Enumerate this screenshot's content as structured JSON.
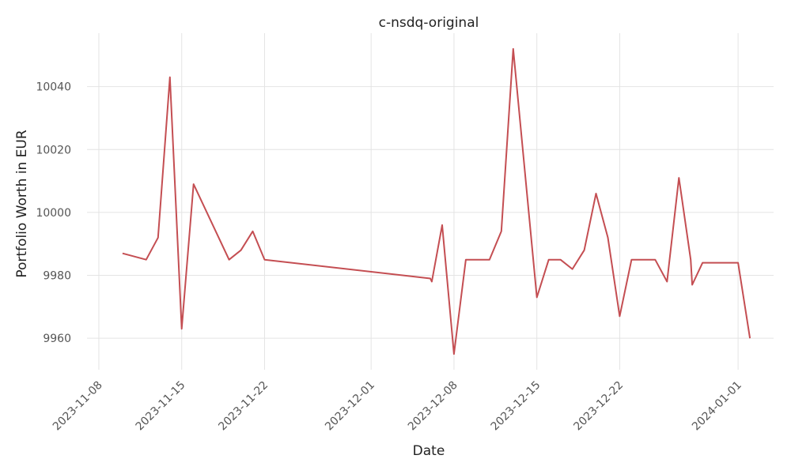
{
  "chart_data": {
    "type": "line",
    "title": "c-nsdq-original",
    "xlabel": "Date",
    "ylabel": "Portfolio Worth in EUR",
    "xlim": [
      "2023-11-07",
      "2024-01-04"
    ],
    "ylim": [
      9950,
      10057
    ],
    "grid": true,
    "x_ticks": [
      "2023-11-08",
      "2023-11-15",
      "2023-11-22",
      "2023-12-01",
      "2023-12-08",
      "2023-12-15",
      "2023-12-22",
      "2024-01-01"
    ],
    "y_ticks": [
      9960,
      9980,
      10000,
      10020,
      10040
    ],
    "color": "#c44e52",
    "series": [
      {
        "x": [
          "2023-11-10",
          "2023-11-12",
          "2023-11-13",
          "2023-11-14",
          "2023-11-15",
          "2023-11-16",
          "2023-11-19",
          "2023-11-20",
          "2023-11-21",
          "2023-11-22",
          "2023-12-06",
          "2023-12-06T03:00",
          "2023-12-07",
          "2023-12-08",
          "2023-12-09",
          "2023-12-10",
          "2023-12-11",
          "2023-12-12",
          "2023-12-13",
          "2023-12-15",
          "2023-12-16",
          "2023-12-17",
          "2023-12-18",
          "2023-12-19",
          "2023-12-20",
          "2023-12-21",
          "2023-12-22",
          "2023-12-23",
          "2023-12-24",
          "2023-12-25",
          "2023-12-26",
          "2023-12-27",
          "2023-12-28",
          "2023-12-28T03:00",
          "2023-12-29",
          "2023-12-30",
          "2023-12-31",
          "2024-01-01",
          "2024-01-02"
        ],
        "values": [
          9987,
          9985,
          9992,
          10043,
          9963,
          10009,
          9985,
          9988,
          9994,
          9985,
          9979,
          9978,
          9996,
          9955,
          9985,
          9985,
          9985,
          9994,
          10052,
          9973,
          9985,
          9985,
          9982,
          9988,
          10006,
          9992,
          9967,
          9985,
          9985,
          9985,
          9978,
          10011,
          9985,
          9977,
          9984,
          9984,
          9984,
          9984,
          9960
        ]
      }
    ]
  }
}
